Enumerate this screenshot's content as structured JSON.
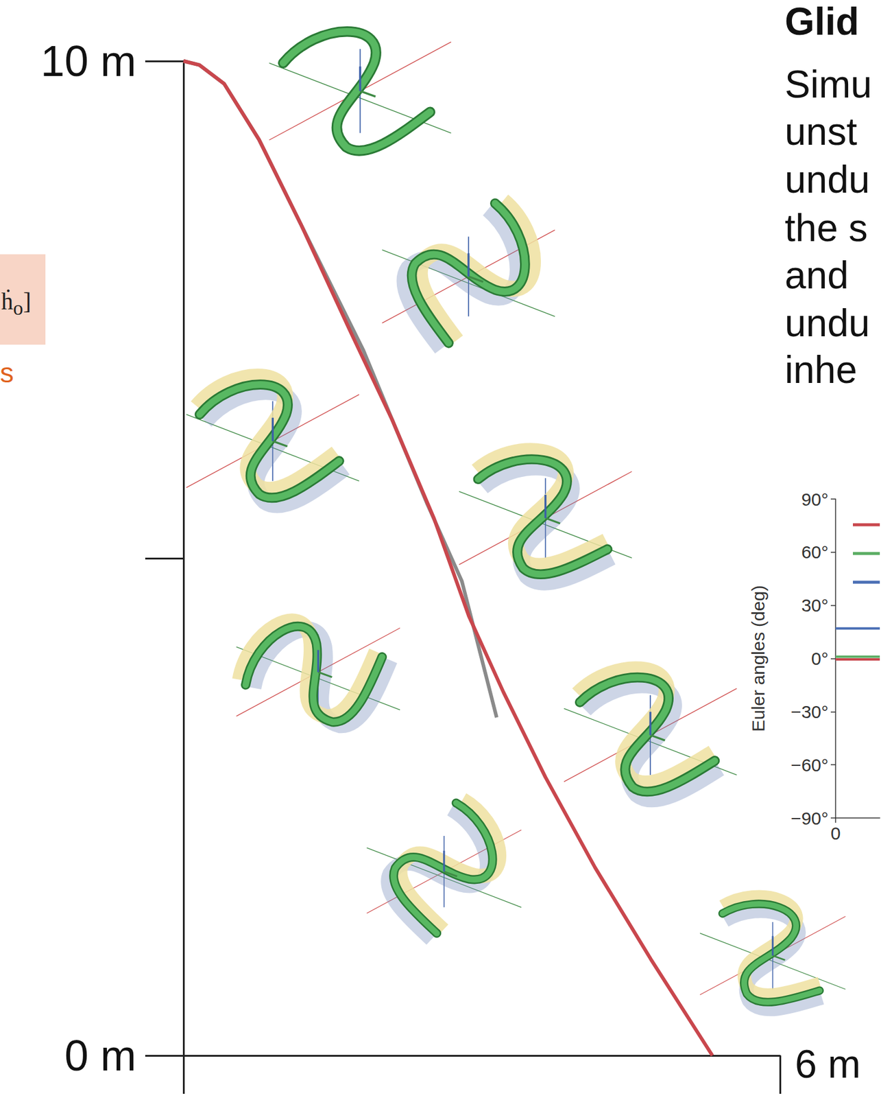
{
  "chart_data": [
    {
      "type": "line",
      "xlim": [
        0,
        6
      ],
      "xticks": [
        {
          "value": 0,
          "label": null
        },
        {
          "value": 6,
          "label": "6 m"
        }
      ],
      "ylim": [
        0,
        10
      ],
      "yticks": [
        {
          "value": 0,
          "label": "0 m"
        },
        {
          "value": 5,
          "label": null
        },
        {
          "value": 10,
          "label": "10 m"
        }
      ],
      "grid": false,
      "series": [
        {
          "color": "#8a8a8a",
          "x": [
            0,
            0.16,
            0.41,
            0.76,
            1.18,
            1.81,
            2.45,
            2.8,
            3.15
          ],
          "values": [
            10,
            9.96,
            9.77,
            9.21,
            8.36,
            7.09,
            5.55,
            4.77,
            3.4
          ]
        },
        {
          "color": "#c9474d",
          "x": [
            0,
            0.16,
            0.41,
            0.76,
            1.18,
            1.67,
            2.1,
            2.52,
            2.87,
            3.22,
            3.64,
            4.14,
            4.7,
            5.32
          ],
          "values": [
            10,
            9.96,
            9.77,
            9.21,
            8.36,
            7.3,
            6.39,
            5.4,
            4.42,
            3.65,
            2.8,
            1.89,
            0.97,
            0
          ]
        }
      ]
    },
    {
      "type": "line",
      "ylabel": "Euler angles (deg)",
      "xlim": [
        0,
        0.2
      ],
      "xticks": [
        0
      ],
      "ylim": [
        -90,
        90
      ],
      "yticks": [
        {
          "value": -90,
          "label": "−90°"
        },
        {
          "value": -60,
          "label": "−60°"
        },
        {
          "value": -30,
          "label": "−30°"
        },
        {
          "value": 0,
          "label": "0°"
        },
        {
          "value": 30,
          "label": "30°"
        },
        {
          "value": 60,
          "label": "60°"
        },
        {
          "value": 90,
          "label": "90°"
        }
      ],
      "grid": false,
      "legend": "upper right",
      "series": [
        {
          "color": "#c9474d",
          "x": [
            0,
            0.2
          ],
          "values": [
            -0.5,
            -0.5
          ]
        },
        {
          "color": "#5aad63",
          "x": [
            0,
            0.2
          ],
          "values": [
            1,
            1
          ]
        },
        {
          "color": "#4a6fb5",
          "x": [
            0,
            0.2
          ],
          "values": [
            17,
            17
          ]
        }
      ]
    }
  ],
  "side_text": {
    "title": "Glid",
    "lines": [
      "Simu",
      "unst",
      "undu",
      "the s",
      "and",
      "undu",
      "inhe"
    ]
  },
  "left_box": {
    "base": "ḣ",
    "sub": "o",
    "tail": "]",
    "note": "s"
  }
}
